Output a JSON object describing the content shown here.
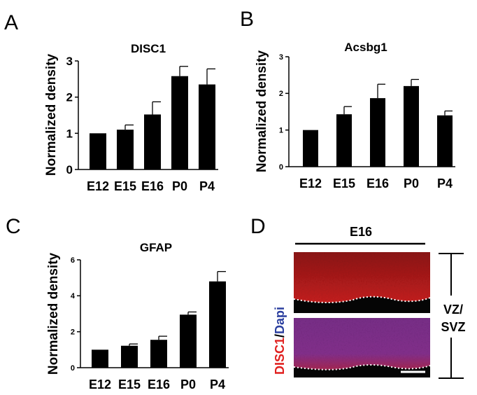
{
  "panel_labels": [
    "A",
    "B",
    "C",
    "D"
  ],
  "chart_data": [
    {
      "type": "bar",
      "panel": "A",
      "title": "DISC1",
      "ylabel": "Normalized density",
      "categories": [
        "E12",
        "E15",
        "E16",
        "P0",
        "P4"
      ],
      "values": [
        1.0,
        1.1,
        1.52,
        2.58,
        2.35
      ],
      "errors": [
        0.0,
        0.13,
        0.35,
        0.27,
        0.43
      ],
      "ylim": [
        0,
        3
      ],
      "yticks": [
        "0",
        "1",
        "2",
        "3"
      ]
    },
    {
      "type": "bar",
      "panel": "B",
      "title": "Acsbg1",
      "ylabel": "Normalized density",
      "categories": [
        "E12",
        "E15",
        "E16",
        "P0",
        "P4"
      ],
      "values": [
        1.0,
        1.43,
        1.87,
        2.2,
        1.4
      ],
      "errors": [
        0.0,
        0.21,
        0.38,
        0.18,
        0.12
      ],
      "ylim": [
        0,
        3
      ],
      "yticks": [
        "0",
        "1",
        "2",
        "3"
      ]
    },
    {
      "type": "bar",
      "panel": "C",
      "title": "GFAP",
      "ylabel": "Normalized density",
      "categories": [
        "E12",
        "E15",
        "E16",
        "P0",
        "P4"
      ],
      "values": [
        1.0,
        1.22,
        1.55,
        2.95,
        4.8
      ],
      "errors": [
        0.0,
        0.1,
        0.2,
        0.15,
        0.55
      ],
      "ylim": [
        0,
        6
      ],
      "yticks": [
        "0",
        "2",
        "4",
        "6"
      ]
    }
  ],
  "panel_d": {
    "stage": "E16",
    "stain_red": "DISC1",
    "separator": "/",
    "stain_blue": "Dapi",
    "zone_line1": "VZ/",
    "zone_line2": "SVZ",
    "color_red": "#e0201f",
    "color_blue": "#2b3f9f"
  }
}
